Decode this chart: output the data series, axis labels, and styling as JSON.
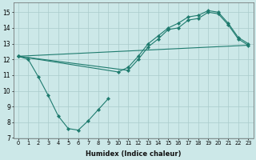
{
  "xlabel": "Humidex (Indice chaleur)",
  "background_color": "#cce8e8",
  "grid_color": "#aacccc",
  "line_color": "#1e7b6e",
  "xlim": [
    -0.5,
    23.5
  ],
  "ylim": [
    7,
    15.6
  ],
  "yticks": [
    7,
    8,
    9,
    10,
    11,
    12,
    13,
    14,
    15
  ],
  "xticks": [
    0,
    1,
    2,
    3,
    4,
    5,
    6,
    7,
    8,
    9,
    10,
    11,
    12,
    13,
    14,
    15,
    16,
    17,
    18,
    19,
    20,
    21,
    22,
    23
  ],
  "lines": [
    {
      "x": [
        0,
        1,
        2,
        3,
        4,
        5,
        6,
        7,
        8,
        9
      ],
      "y": [
        12.2,
        12.0,
        10.9,
        9.7,
        8.4,
        7.6,
        7.5,
        8.1,
        8.8,
        9.5
      ],
      "markers": true
    },
    {
      "x": [
        0,
        11,
        12,
        13,
        14,
        15,
        16,
        17,
        18,
        19,
        20,
        21,
        22,
        23
      ],
      "y": [
        12.2,
        11.3,
        12.0,
        12.8,
        13.3,
        13.9,
        14.0,
        14.5,
        14.6,
        15.0,
        14.9,
        14.2,
        13.3,
        12.9
      ],
      "markers": true
    },
    {
      "x": [
        0,
        10,
        11,
        12,
        13,
        14,
        15,
        16,
        17,
        18,
        19,
        20,
        21,
        22,
        23
      ],
      "y": [
        12.2,
        11.2,
        11.5,
        12.2,
        13.0,
        13.5,
        14.0,
        14.3,
        14.7,
        14.8,
        15.1,
        15.0,
        14.3,
        13.4,
        13.0
      ],
      "markers": true
    },
    {
      "x": [
        0,
        23
      ],
      "y": [
        12.2,
        12.9
      ],
      "markers": false
    }
  ]
}
